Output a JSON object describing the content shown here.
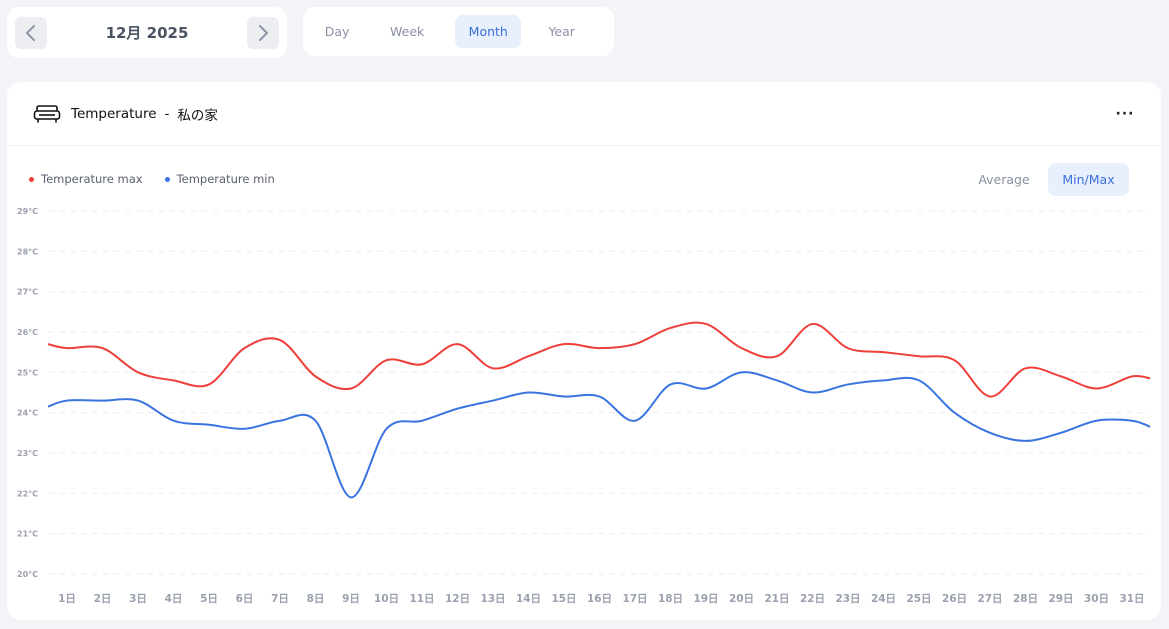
{
  "date_nav": {
    "label": "12月 2025",
    "prev_icon": "chevron-left-icon",
    "next_icon": "chevron-right-icon"
  },
  "period_tabs": [
    {
      "label": "Day",
      "active": false
    },
    {
      "label": "Week",
      "active": false
    },
    {
      "label": "Month",
      "active": true
    },
    {
      "label": "Year",
      "active": false
    }
  ],
  "card": {
    "icon": "sofa-icon",
    "title": "Temperature",
    "separator": "-",
    "place": "私の家",
    "more_label": "···"
  },
  "legend": [
    {
      "label": "Temperature max",
      "color": "#ee3f3a"
    },
    {
      "label": "Temperature min",
      "color": "#3a74e0"
    }
  ],
  "mode_toggle": [
    {
      "label": "Average",
      "active": false
    },
    {
      "label": "Min/Max",
      "active": true
    }
  ],
  "chart_data": {
    "type": "line",
    "categories": [
      "1日",
      "2日",
      "3日",
      "4日",
      "5日",
      "6日",
      "7日",
      "8日",
      "9日",
      "10日",
      "11日",
      "12日",
      "13日",
      "14日",
      "15日",
      "16日",
      "17日",
      "18日",
      "19日",
      "20日",
      "21日",
      "22日",
      "23日",
      "24日",
      "25日",
      "26日",
      "27日",
      "28日",
      "29日",
      "30日",
      "31日"
    ],
    "y_ticks": [
      "29°C",
      "28°C",
      "27°C",
      "26°C",
      "25°C",
      "24°C",
      "23°C",
      "22°C",
      "21°C",
      "20°C"
    ],
    "ylim": [
      20,
      29
    ],
    "grid": true,
    "series": [
      {
        "name": "Temperature max",
        "color": "#ee3f3a",
        "values": [
          25.6,
          25.6,
          25.0,
          24.8,
          24.7,
          25.6,
          25.8,
          24.9,
          24.6,
          25.3,
          25.2,
          25.7,
          25.1,
          25.4,
          25.7,
          25.6,
          25.7,
          26.1,
          26.2,
          25.6,
          25.4,
          26.2,
          25.6,
          25.5,
          25.4,
          25.3,
          24.4,
          25.1,
          24.9,
          24.6,
          24.9
        ]
      },
      {
        "name": "Temperature min",
        "color": "#3a74e0",
        "values": [
          24.3,
          24.3,
          24.3,
          23.8,
          23.7,
          23.6,
          23.8,
          23.8,
          21.9,
          23.6,
          23.8,
          24.1,
          24.3,
          24.5,
          24.4,
          24.4,
          23.8,
          24.7,
          24.6,
          25.0,
          24.8,
          24.5,
          24.7,
          24.8,
          24.8,
          24.0,
          23.5,
          23.3,
          23.5,
          23.8,
          23.8
        ]
      }
    ]
  }
}
